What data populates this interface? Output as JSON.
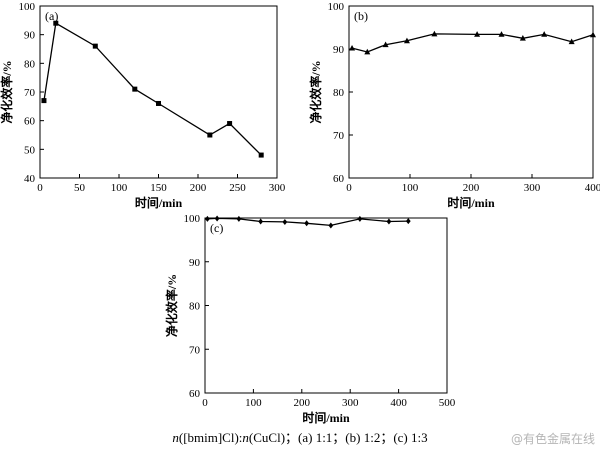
{
  "caption": {
    "n1": "n",
    "a": "([bmim]Cl):",
    "n2": "n",
    "b": "(CuCl)；(a) 1:1；(b) 1:2；(c) 1:3"
  },
  "watermark": "@有色金属在线",
  "chart_data": [
    {
      "type": "line",
      "panel_label": "(a)",
      "xlabel": "时间/min",
      "ylabel": "净化效率/%",
      "xlim": [
        0,
        300
      ],
      "ylim": [
        40,
        100
      ],
      "xticks": [
        0,
        50,
        100,
        150,
        200,
        250,
        300
      ],
      "yticks": [
        40,
        50,
        60,
        70,
        80,
        90,
        100
      ],
      "marker": "square",
      "grid": false,
      "x": [
        5,
        20,
        70,
        120,
        150,
        215,
        240,
        280
      ],
      "y": [
        67,
        94,
        86,
        71,
        66,
        55,
        59,
        48
      ]
    },
    {
      "type": "line",
      "panel_label": "(b)",
      "xlabel": "时间/min",
      "ylabel": "净化效率/%",
      "xlim": [
        0,
        400
      ],
      "ylim": [
        60,
        100
      ],
      "xticks": [
        0,
        100,
        200,
        300,
        400
      ],
      "yticks": [
        60,
        70,
        80,
        90,
        100
      ],
      "marker": "triangle",
      "grid": false,
      "x": [
        5,
        30,
        60,
        95,
        140,
        210,
        250,
        285,
        320,
        365,
        400
      ],
      "y": [
        90.2,
        89.3,
        91.0,
        91.9,
        93.5,
        93.4,
        93.4,
        92.5,
        93.4,
        91.7,
        93.3
      ]
    },
    {
      "type": "line",
      "panel_label": "(c)",
      "xlabel": "时间/min",
      "ylabel": "净化效率/%",
      "xlim": [
        0,
        500
      ],
      "ylim": [
        60,
        100
      ],
      "xticks": [
        0,
        100,
        200,
        300,
        400,
        500
      ],
      "yticks": [
        60,
        70,
        80,
        90,
        100
      ],
      "marker": "diamond",
      "grid": false,
      "x": [
        5,
        25,
        70,
        115,
        165,
        210,
        260,
        320,
        380,
        420
      ],
      "y": [
        99.8,
        99.9,
        99.8,
        99.2,
        99.1,
        98.8,
        98.3,
        99.8,
        99.2,
        99.3
      ]
    }
  ]
}
